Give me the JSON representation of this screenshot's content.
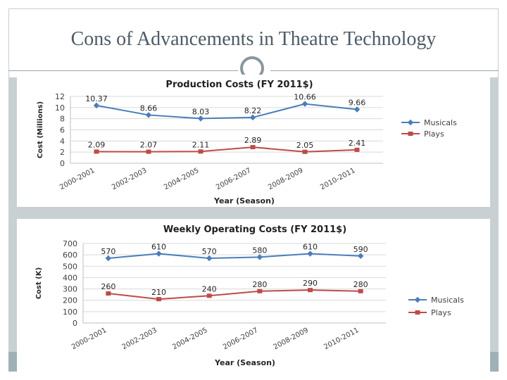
{
  "slide": {
    "title": "Cons of Advancements in Theatre Technology"
  },
  "colors": {
    "musicals": "#4a7ebb",
    "plays": "#be4b48",
    "grid": "#d9d9d9",
    "axis_text": "#404040"
  },
  "chart_data": [
    {
      "type": "line",
      "title": "Production Costs (FY 2011$)",
      "xlabel": "Year (Season)",
      "ylabel": "Cost (Millions)",
      "categories": [
        "2000-2001",
        "2002-2003",
        "2004-2005",
        "2006-2007",
        "2008-2009",
        "2010-2011"
      ],
      "ylim": [
        0,
        12
      ],
      "yticks": [
        "0",
        "2",
        "4",
        "6",
        "8",
        "10",
        "12"
      ],
      "grid": true,
      "legend": "right",
      "series": [
        {
          "name": "Musicals",
          "values": [
            10.37,
            8.66,
            8.03,
            8.22,
            10.66,
            9.66
          ],
          "labels": [
            "10.37",
            "8.66",
            "8.03",
            "8.22",
            "10.66",
            "9.66"
          ]
        },
        {
          "name": "Plays",
          "values": [
            2.09,
            2.07,
            2.11,
            2.89,
            2.05,
            2.41
          ],
          "labels": [
            "2.09",
            "2.07",
            "2.11",
            "2.89",
            "2.05",
            "2.41"
          ]
        }
      ]
    },
    {
      "type": "line",
      "title": "Weekly Operating Costs (FY 2011$)",
      "xlabel": "Year (Season)",
      "ylabel": "Cost (K)",
      "categories": [
        "2000-2001",
        "2002-2003",
        "2004-2005",
        "2006-2007",
        "2008-2009",
        "2010-2011"
      ],
      "ylim": [
        0,
        700
      ],
      "yticks": [
        "0",
        "100",
        "200",
        "300",
        "400",
        "500",
        "600",
        "700"
      ],
      "grid": true,
      "legend": "bottom-right",
      "series": [
        {
          "name": "Musicals",
          "values": [
            570,
            610,
            570,
            580,
            610,
            590
          ],
          "labels": [
            "570",
            "610",
            "570",
            "580",
            "610",
            "590"
          ]
        },
        {
          "name": "Plays",
          "values": [
            260,
            210,
            240,
            280,
            290,
            280
          ],
          "labels": [
            "260",
            "210",
            "240",
            "280",
            "290",
            "280"
          ]
        }
      ]
    }
  ]
}
